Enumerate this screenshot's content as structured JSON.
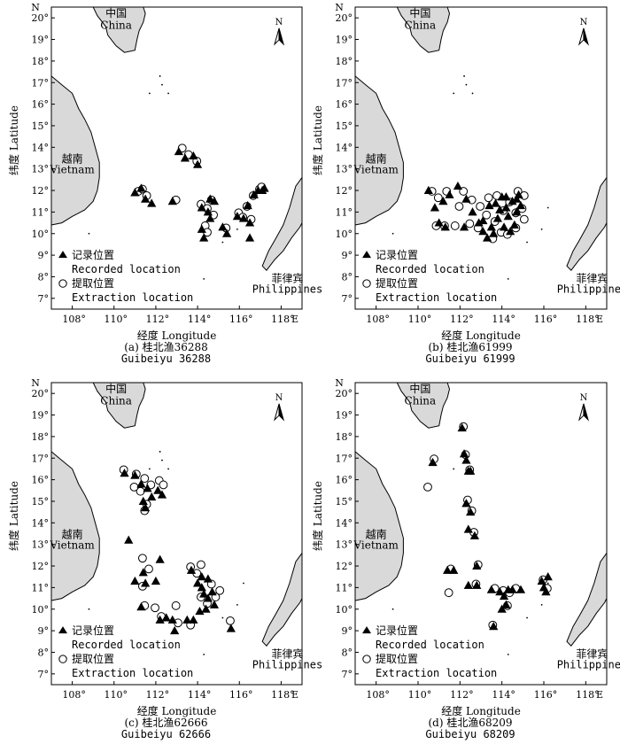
{
  "axes": {
    "x_ticks": [
      "108°",
      "110°",
      "112°",
      "114°",
      "116°",
      "118°"
    ],
    "x_end": "E",
    "y_ticks": [
      "7°",
      "8°",
      "9°",
      "10°",
      "11°",
      "12°",
      "13°",
      "14°",
      "15°",
      "16°",
      "17°",
      "18°",
      "19°",
      "20°"
    ],
    "y_end": "N",
    "xlabel": "经度 Longitude",
    "ylabel": "纬度 Latitude",
    "lon_range": [
      107,
      119
    ],
    "lat_range": [
      6.5,
      20.5
    ]
  },
  "places": {
    "china_zh": "中国",
    "china_en": "China",
    "vietnam_zh": "越南",
    "vietnam_en": "Vietnam",
    "philippines_zh": "菲律宾",
    "philippines_en": "Philippines",
    "north": "N"
  },
  "legend": {
    "recorded_zh": "记录位置",
    "recorded_en": "Recorded location",
    "extraction_zh": "提取位置",
    "extraction_en": "Extraction location"
  },
  "colors": {
    "land": "#d9d9d9",
    "recorded": "#000000",
    "extraction": "#ffffff",
    "frame": "#000000"
  },
  "panels": [
    {
      "caption_zh": "(a) 桂北渔36288",
      "caption_en": "Guibeiyu 36288",
      "recorded": [
        [
          111,
          11.9
        ],
        [
          111.3,
          12.1
        ],
        [
          111.5,
          11.6
        ],
        [
          111.8,
          11.4
        ],
        [
          112.8,
          11.5
        ],
        [
          113.1,
          13.8
        ],
        [
          113.4,
          13.5
        ],
        [
          113.8,
          13.6
        ],
        [
          114,
          13.2
        ],
        [
          114.2,
          11.2
        ],
        [
          114.5,
          11.0
        ],
        [
          114.6,
          11.6
        ],
        [
          114.8,
          11.5
        ],
        [
          114.2,
          10.2
        ],
        [
          114.6,
          10.7
        ],
        [
          114.3,
          9.8
        ],
        [
          115.2,
          10.3
        ],
        [
          115.4,
          10
        ],
        [
          115.9,
          10.8
        ],
        [
          116.2,
          10.7
        ],
        [
          116.4,
          11.3
        ],
        [
          116.5,
          10.5
        ],
        [
          116.5,
          9.8
        ],
        [
          116.7,
          11.8
        ],
        [
          116.9,
          12
        ],
        [
          117.1,
          12
        ],
        [
          117.2,
          12.1
        ]
      ],
      "extraction": [
        [
          111.1,
          11.9
        ],
        [
          111.3,
          12.0
        ],
        [
          111.5,
          11.7
        ],
        [
          112.9,
          11.5
        ],
        [
          113.2,
          13.9
        ],
        [
          113.5,
          13.6
        ],
        [
          113.9,
          13.3
        ],
        [
          114.1,
          11.3
        ],
        [
          114.4,
          11.1
        ],
        [
          114.6,
          11.5
        ],
        [
          114.3,
          10.3
        ],
        [
          114.7,
          10.8
        ],
        [
          114.4,
          10.0
        ],
        [
          115.3,
          10.2
        ],
        [
          115.9,
          10.9
        ],
        [
          116.1,
          10.7
        ],
        [
          116.3,
          11.2
        ],
        [
          116.5,
          10.6
        ],
        [
          116.6,
          11.7
        ],
        [
          116.9,
          12
        ],
        [
          117.0,
          12.1
        ]
      ]
    },
    {
      "caption_zh": "(b) 桂北渔61999",
      "caption_en": "Guibeiyu 61999",
      "recorded": [
        [
          110.5,
          12
        ],
        [
          110.8,
          11.2
        ],
        [
          111,
          10.5
        ],
        [
          111.2,
          11.5
        ],
        [
          111.5,
          11.8
        ],
        [
          111.9,
          12.2
        ],
        [
          112.3,
          11.6
        ],
        [
          112.6,
          11
        ],
        [
          112.9,
          10.5
        ],
        [
          113.1,
          10.1
        ],
        [
          113.3,
          9.8
        ],
        [
          113.5,
          10.3
        ],
        [
          113.8,
          10.7
        ],
        [
          113.7,
          11.4
        ],
        [
          114,
          11.7
        ],
        [
          114.2,
          11.2
        ],
        [
          114.3,
          10.8
        ],
        [
          114.5,
          11.5
        ],
        [
          114.7,
          11.0
        ],
        [
          114.6,
          10.4
        ],
        [
          114.9,
          11.3
        ],
        [
          114.8,
          11.8
        ],
        [
          114.4,
          10.1
        ],
        [
          114.1,
          10.3
        ],
        [
          113.6,
          10.0
        ],
        [
          112.2,
          10.3
        ],
        [
          111.3,
          10.3
        ],
        [
          114.7,
          11.6
        ],
        [
          114.2,
          11.7
        ],
        [
          113.9,
          11.1
        ],
        [
          113.4,
          11.3
        ],
        [
          113.1,
          10.6
        ]
      ],
      "extraction": [
        [
          110.6,
          11.9
        ],
        [
          110.9,
          11.6
        ],
        [
          111.3,
          11.9
        ],
        [
          110.8,
          10.3
        ],
        [
          111.2,
          10.3
        ],
        [
          111.7,
          10.3
        ],
        [
          112.1,
          11.9
        ],
        [
          112.5,
          11.5
        ],
        [
          112.9,
          11.2
        ],
        [
          113.2,
          10.8
        ],
        [
          113.6,
          10.5
        ],
        [
          113.9,
          10.0
        ],
        [
          114.2,
          9.9
        ],
        [
          114.6,
          10.2
        ],
        [
          115.0,
          10.6
        ],
        [
          114.9,
          11.1
        ],
        [
          114.7,
          11.9
        ],
        [
          114.3,
          11.4
        ],
        [
          114.0,
          11.0
        ],
        [
          113.7,
          11.7
        ],
        [
          113.3,
          11.6
        ],
        [
          112.8,
          10.2
        ],
        [
          112.4,
          10.4
        ],
        [
          111.9,
          11.2
        ],
        [
          114.6,
          10.9
        ],
        [
          113.5,
          9.7
        ],
        [
          115.0,
          11.7
        ]
      ]
    },
    {
      "caption_zh": "(c) 桂北渔62666",
      "caption_en": "Guibeiyu 62666",
      "recorded": [
        [
          110.5,
          16.3
        ],
        [
          111,
          16.2
        ],
        [
          111.3,
          15.8
        ],
        [
          111.6,
          15.6
        ],
        [
          111.8,
          15.2
        ],
        [
          112.1,
          15.5
        ],
        [
          111.4,
          15.0
        ],
        [
          111.5,
          14.7
        ],
        [
          112.3,
          15.3
        ],
        [
          110.7,
          13.2
        ],
        [
          111,
          11.3
        ],
        [
          111.4,
          11.7
        ],
        [
          111.5,
          11.2
        ],
        [
          111.3,
          10.1
        ],
        [
          112.2,
          12.3
        ],
        [
          112,
          11.3
        ],
        [
          112.2,
          9.5
        ],
        [
          112.5,
          9.6
        ],
        [
          112.8,
          9.5
        ],
        [
          112.9,
          9.0
        ],
        [
          113.5,
          9.5
        ],
        [
          113.8,
          9.5
        ],
        [
          113.7,
          11.8
        ],
        [
          114,
          11.2
        ],
        [
          114.2,
          11.0
        ],
        [
          114.3,
          10.7
        ],
        [
          114.5,
          10.5
        ],
        [
          114.4,
          10.0
        ],
        [
          114.7,
          10.8
        ],
        [
          114.1,
          9.9
        ],
        [
          114.8,
          10.2
        ],
        [
          114.5,
          11.4
        ],
        [
          115.6,
          9.1
        ],
        [
          114.2,
          11.5
        ]
      ],
      "extraction": [
        [
          110.4,
          16.4
        ],
        [
          111.0,
          16.2
        ],
        [
          111.4,
          16.0
        ],
        [
          111.7,
          15.7
        ],
        [
          111.2,
          15.4
        ],
        [
          111.5,
          14.8
        ],
        [
          111.4,
          14.5
        ],
        [
          112.1,
          15.9
        ],
        [
          112.3,
          15.7
        ],
        [
          110.9,
          15.6
        ],
        [
          111.3,
          12.3
        ],
        [
          111.6,
          11.8
        ],
        [
          111.3,
          11.0
        ],
        [
          111.4,
          10.1
        ],
        [
          111.9,
          10.0
        ],
        [
          112.2,
          9.6
        ],
        [
          113.0,
          9.3
        ],
        [
          112.9,
          10.1
        ],
        [
          113.6,
          11.9
        ],
        [
          113.9,
          11.6
        ],
        [
          114.1,
          12.0
        ],
        [
          114.1,
          10.5
        ],
        [
          114.4,
          10.2
        ],
        [
          114.6,
          11.1
        ],
        [
          114.8,
          10.5
        ],
        [
          115.5,
          9.4
        ],
        [
          115.0,
          10.8
        ],
        [
          113.6,
          9.2
        ]
      ],
      "extraction_only_note": ""
    },
    {
      "caption_zh": "(d) 桂北渔68209",
      "caption_en": "Guibeiyu 68209",
      "recorded": [
        [
          112.1,
          18.4
        ],
        [
          112.2,
          17.2
        ],
        [
          112.3,
          16.9
        ],
        [
          112.4,
          16.4
        ],
        [
          112.5,
          16.4
        ],
        [
          112.3,
          14.9
        ],
        [
          112.5,
          14.5
        ],
        [
          112.4,
          13.7
        ],
        [
          112.7,
          13.4
        ],
        [
          112.8,
          12
        ],
        [
          112.4,
          11.1
        ],
        [
          112.8,
          11.1
        ],
        [
          113.5,
          10.9
        ],
        [
          113.9,
          10.8
        ],
        [
          114.1,
          10.6
        ],
        [
          114.3,
          10.9
        ],
        [
          114.5,
          10.9
        ],
        [
          114.2,
          10.2
        ],
        [
          114.0,
          10.0
        ],
        [
          113.6,
          9.2
        ],
        [
          114.9,
          10.9
        ],
        [
          115.9,
          11.3
        ],
        [
          116.0,
          11.0
        ],
        [
          116.1,
          10.8
        ],
        [
          116.2,
          11.5
        ],
        [
          111.4,
          11.8
        ],
        [
          111.7,
          11.8
        ],
        [
          110.7,
          16.8
        ]
      ],
      "extraction": [
        [
          112.1,
          18.4
        ],
        [
          112.2,
          17.1
        ],
        [
          112.4,
          16.4
        ],
        [
          110.7,
          16.9
        ],
        [
          110.4,
          15.6
        ],
        [
          112.3,
          15.0
        ],
        [
          112.5,
          14.5
        ],
        [
          112.6,
          13.5
        ],
        [
          112.8,
          12.0
        ],
        [
          112.7,
          11.1
        ],
        [
          113.6,
          10.9
        ],
        [
          114.0,
          10.8
        ],
        [
          114.3,
          10.7
        ],
        [
          114.2,
          10.1
        ],
        [
          114.6,
          10.9
        ],
        [
          113.5,
          9.2
        ],
        [
          115.9,
          11.3
        ],
        [
          116.1,
          10.9
        ],
        [
          111.5,
          11.8
        ],
        [
          111.4,
          10.7
        ]
      ]
    }
  ]
}
